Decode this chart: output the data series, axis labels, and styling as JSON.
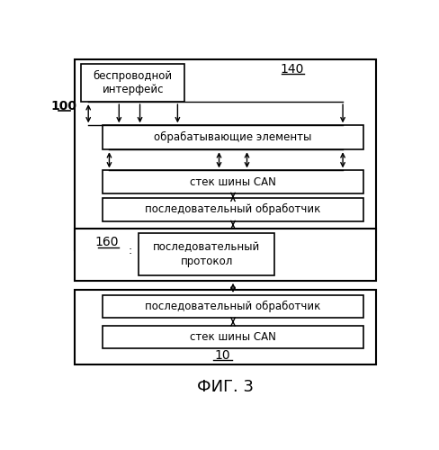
{
  "title": "ФИГ. 3",
  "background_color": "#ffffff",
  "label_100": "100",
  "label_140": "140",
  "label_160": "160",
  "label_10": "10",
  "box_wireless": "беспроводной\nинтерфейс",
  "box_processing": "обрабатывающие элементы",
  "box_can_stack_top": "стек шины CAN",
  "box_serial_handler_top": "последовательный обработчик",
  "box_serial_protocol": "последовательный\nпротокол",
  "box_serial_handler_bot": "последовательный обработчик",
  "box_can_stack_bot": "стек шины CAN",
  "colon_160": ":"
}
